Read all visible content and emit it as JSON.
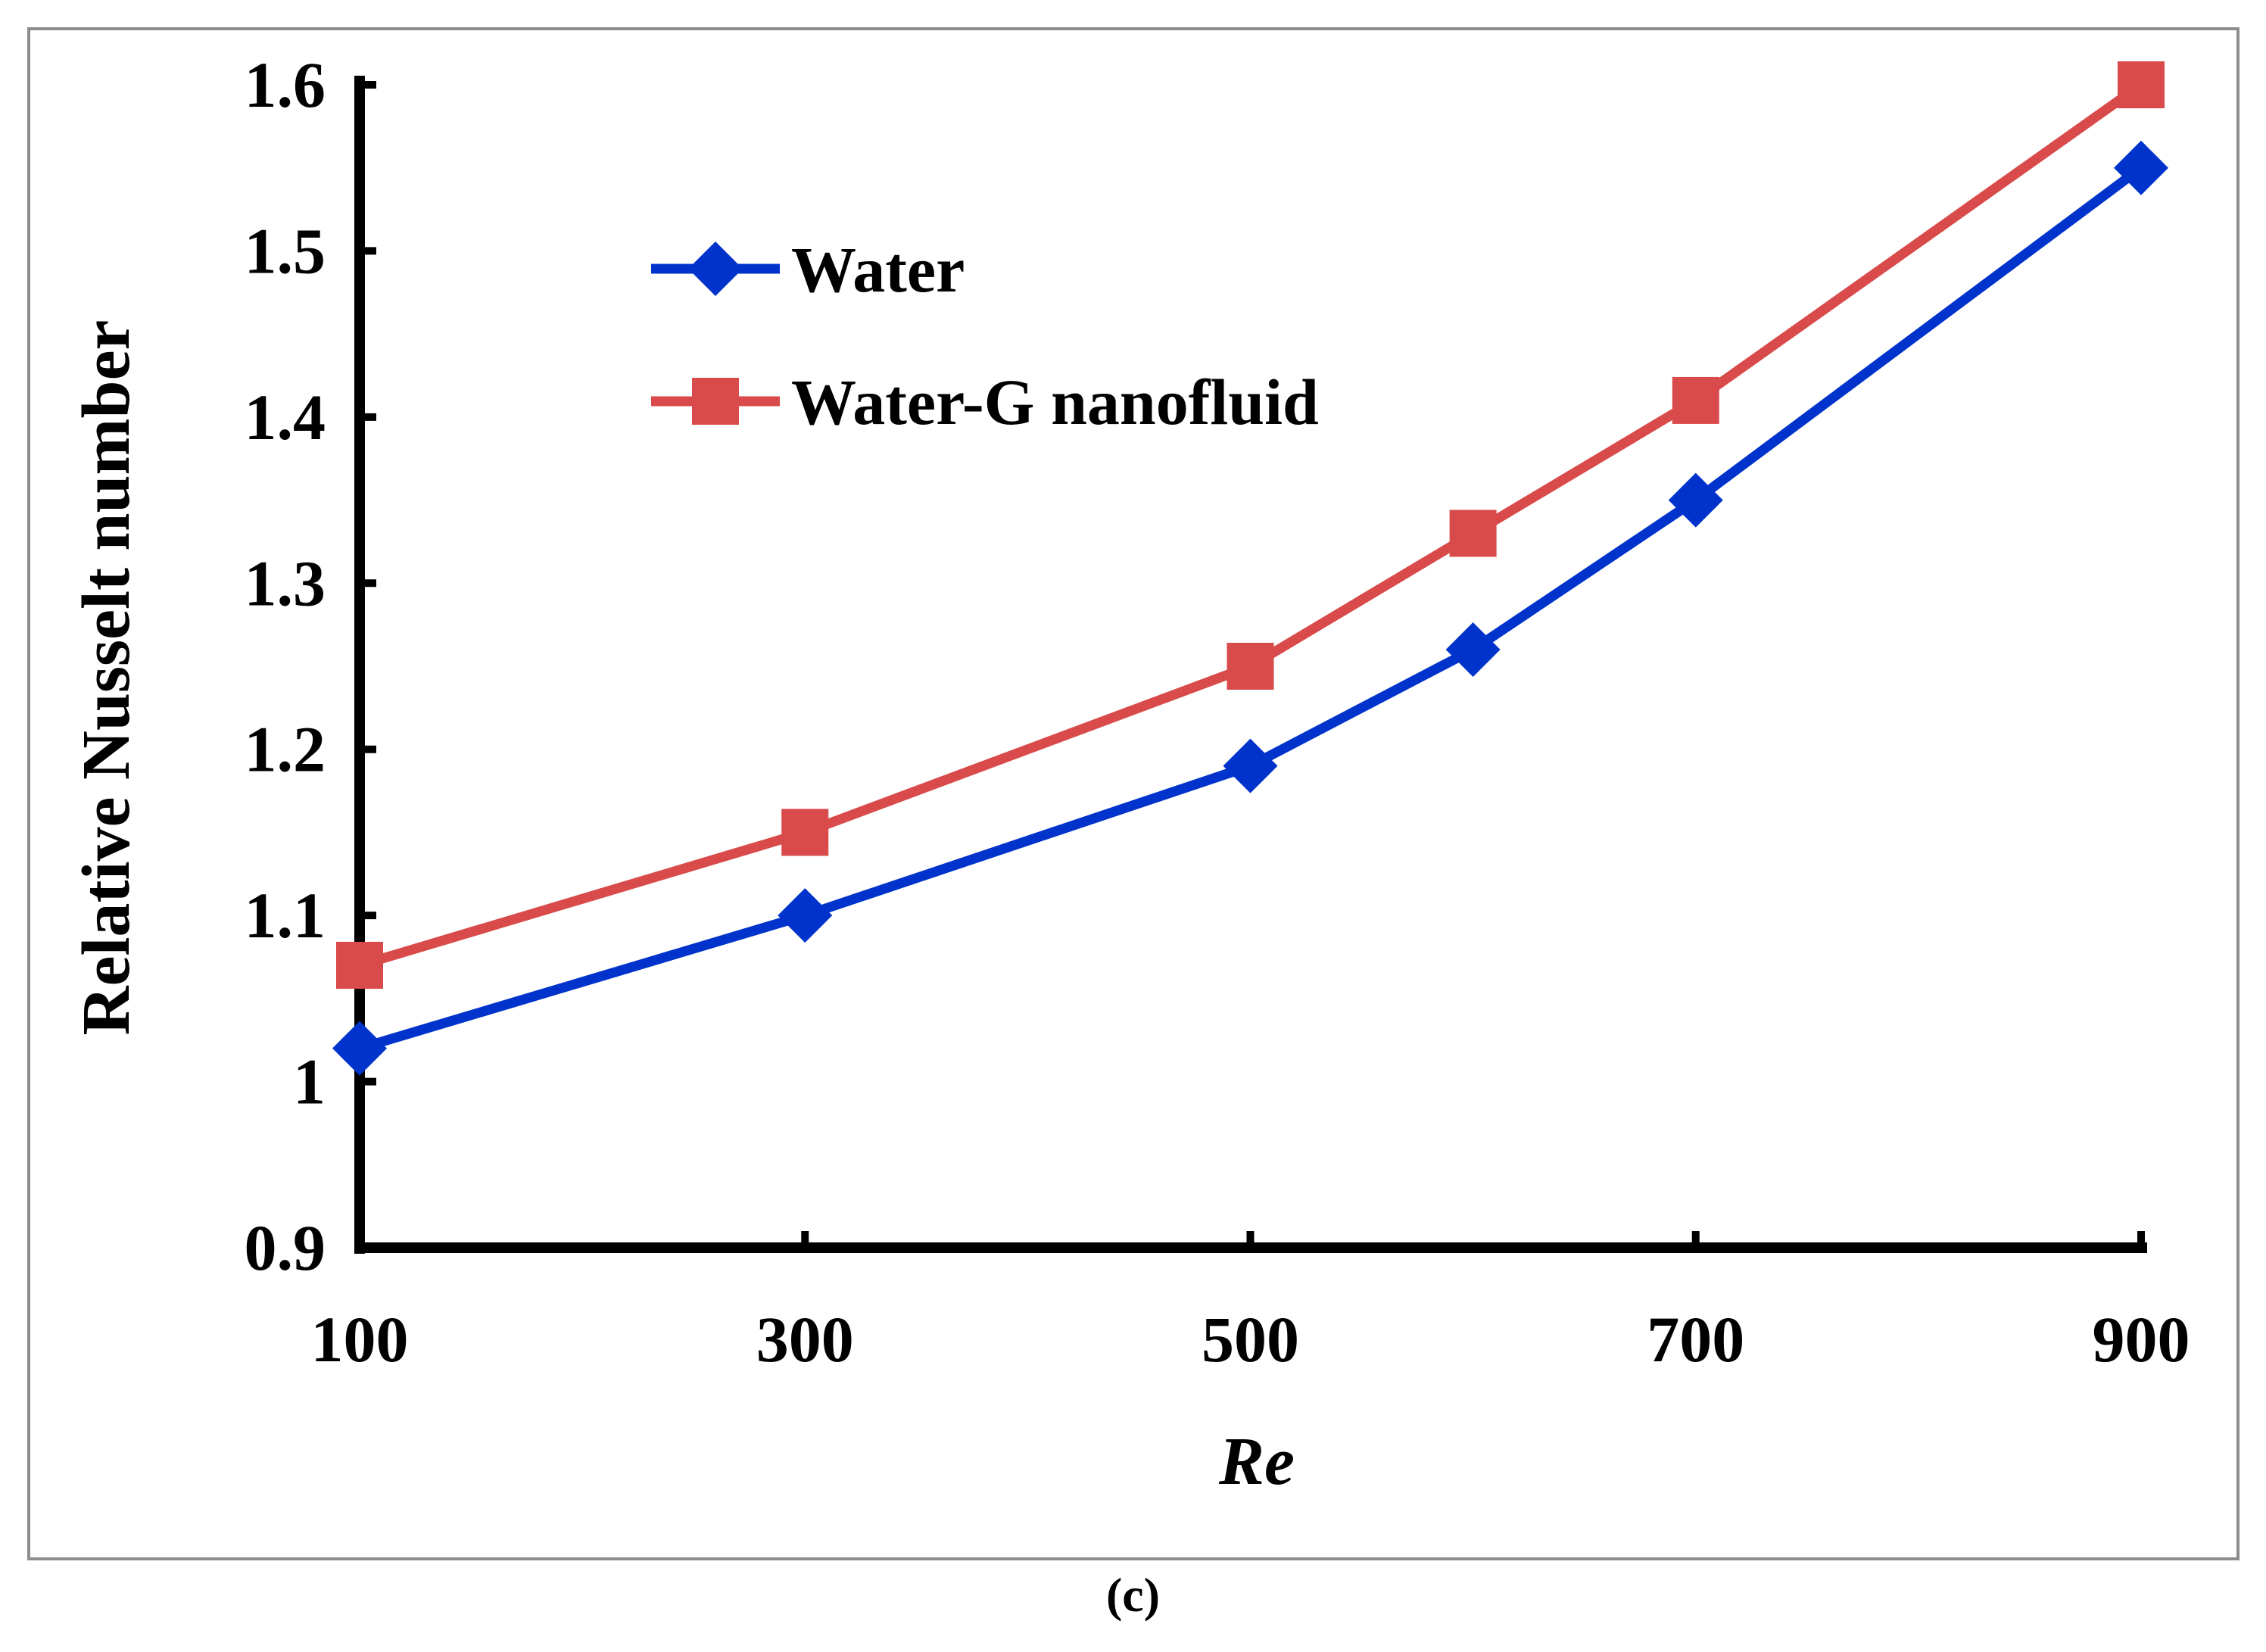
{
  "caption": "(c)",
  "chart_data": {
    "type": "line",
    "xlabel": "Re",
    "ylabel": "Relative Nusselt number",
    "x": [
      100,
      300,
      500,
      600,
      700,
      900
    ],
    "xticks": [
      100,
      300,
      500,
      700,
      900
    ],
    "xtick_labels": [
      "100",
      "300",
      "500",
      "700",
      "900"
    ],
    "yticks": [
      0.9,
      1.0,
      1.1,
      1.2,
      1.3,
      1.4,
      1.5,
      1.6
    ],
    "ytick_labels": [
      "0.9",
      "1",
      "1.1",
      "1.2",
      "1.3",
      "1.4",
      "1.5",
      "1.6"
    ],
    "xlim": [
      100,
      900
    ],
    "ylim": [
      0.9,
      1.6
    ],
    "grid": false,
    "legend_position": "top-left",
    "series": [
      {
        "name": "Water",
        "values": [
          1.02,
          1.1,
          1.19,
          1.26,
          1.35,
          1.55
        ],
        "color": "#0033CC",
        "marker": "diamond"
      },
      {
        "name": "Water-G nanofluid",
        "values": [
          1.07,
          1.15,
          1.25,
          1.33,
          1.41,
          1.6
        ],
        "color": "#D94A4A",
        "marker": "square"
      }
    ]
  }
}
